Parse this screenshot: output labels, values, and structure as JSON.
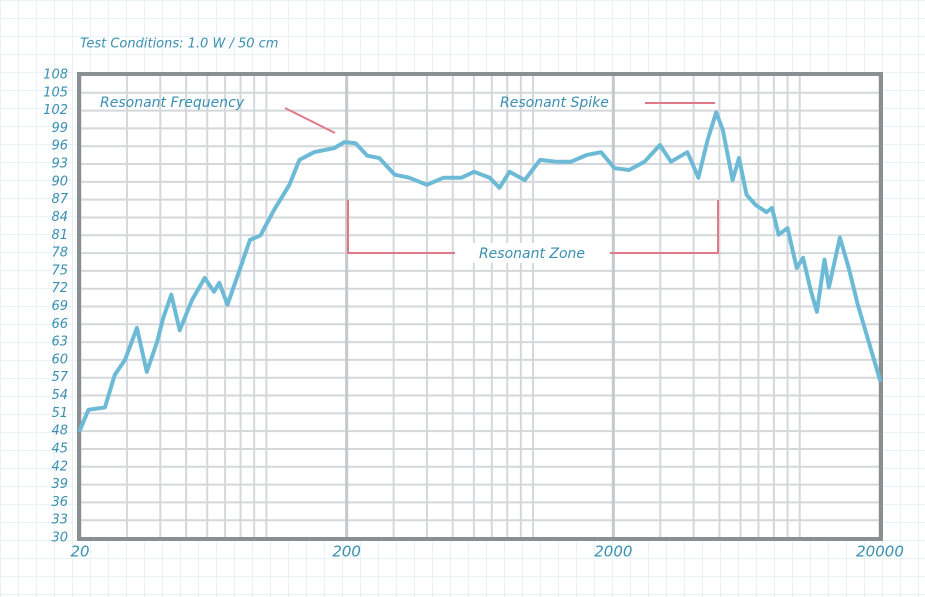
{
  "chart_data": {
    "type": "line",
    "subtitle": "Test Conditions: 1.0 W / 50 cm",
    "xscale": "log",
    "xlim": [
      20,
      20000
    ],
    "xticks": [
      20,
      200,
      2000,
      20000
    ],
    "ylim": [
      30,
      108
    ],
    "yticks": [
      30,
      33,
      36,
      39,
      42,
      45,
      48,
      51,
      54,
      57,
      60,
      63,
      66,
      69,
      72,
      75,
      78,
      81,
      84,
      87,
      90,
      93,
      96,
      99,
      102,
      105,
      108
    ],
    "grid": true,
    "series": [
      {
        "color": "#6cbad6",
        "x": [
          20,
          21.5,
          24.8,
          27,
          29.5,
          32.7,
          35.6,
          38.9,
          41,
          44,
          47.3,
          52.6,
          58.7,
          63.6,
          66.6,
          71.5,
          79.4,
          86.7,
          95,
          107,
          122,
          133,
          151,
          180,
          196,
          216,
          239,
          265,
          303,
          343,
          400,
          462,
          539,
          601,
          688,
          748,
          816,
          930,
          1063,
          1216,
          1388,
          1587,
          1800,
          2020,
          2290,
          2620,
          2990,
          3290,
          3790,
          4170,
          4510,
          4860,
          5150,
          5600,
          5920,
          6320,
          6840,
          7500,
          7870,
          8330,
          9000,
          9740,
          10300,
          10980,
          11600,
          12380,
          12860,
          14150,
          15270,
          16510,
          20000
        ],
        "values": [
          48.2,
          51.6,
          52,
          57.5,
          60,
          65.4,
          58,
          63,
          67,
          71,
          65,
          70.1,
          73.8,
          71.5,
          73,
          69.3,
          75.2,
          80.2,
          81,
          85.3,
          89.5,
          93.7,
          95,
          95.7,
          96.7,
          96.5,
          94.4,
          94,
          91.2,
          90.7,
          89.5,
          90.7,
          90.7,
          91.7,
          90.7,
          89,
          91.7,
          90.3,
          93.7,
          93.4,
          93.4,
          94.5,
          95,
          92.3,
          92,
          93.4,
          96.2,
          93.4,
          95,
          90.7,
          97,
          101.7,
          98.7,
          90.3,
          94,
          87.8,
          86.1,
          84.9,
          85.6,
          81.1,
          82.2,
          75.5,
          77.2,
          71.8,
          68.1,
          76.9,
          72.2,
          80.6,
          75.5,
          69.3,
          56.6
        ]
      }
    ],
    "annotations": [
      "Resonant Frequency",
      "Resonant Spike",
      "Resonant Zone"
    ]
  }
}
